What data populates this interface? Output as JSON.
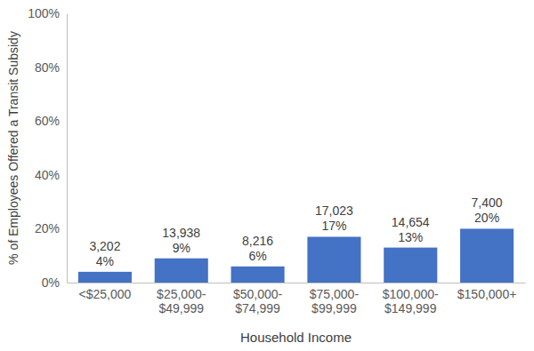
{
  "chart_data": {
    "type": "bar",
    "x_label": "Household Income",
    "y_label": "% of Employees Offered a Transit Subsidy",
    "categories": [
      "<$25,000",
      "$25,000-$49,999",
      "$50,000-$74,999",
      "$75,000-$99,999",
      "$100,000-$149,999",
      "$150,000+"
    ],
    "values": [
      4,
      9,
      6,
      17,
      13,
      20
    ],
    "value_labels": [
      "4%",
      "9%",
      "6%",
      "17%",
      "13%",
      "20%"
    ],
    "count_labels": [
      "3,202",
      "13,938",
      "8,216",
      "17,023",
      "14,654",
      "7,400"
    ],
    "color": "#4472c4",
    "ylim": [
      0,
      100
    ],
    "yticks": [
      {
        "value": 0,
        "label": "0%"
      },
      {
        "value": 20,
        "label": "20%"
      },
      {
        "value": 40,
        "label": "40%"
      },
      {
        "value": 60,
        "label": "60%"
      },
      {
        "value": 80,
        "label": "80%"
      },
      {
        "value": 100,
        "label": "100%"
      }
    ],
    "grid": false,
    "data_labels": true
  }
}
